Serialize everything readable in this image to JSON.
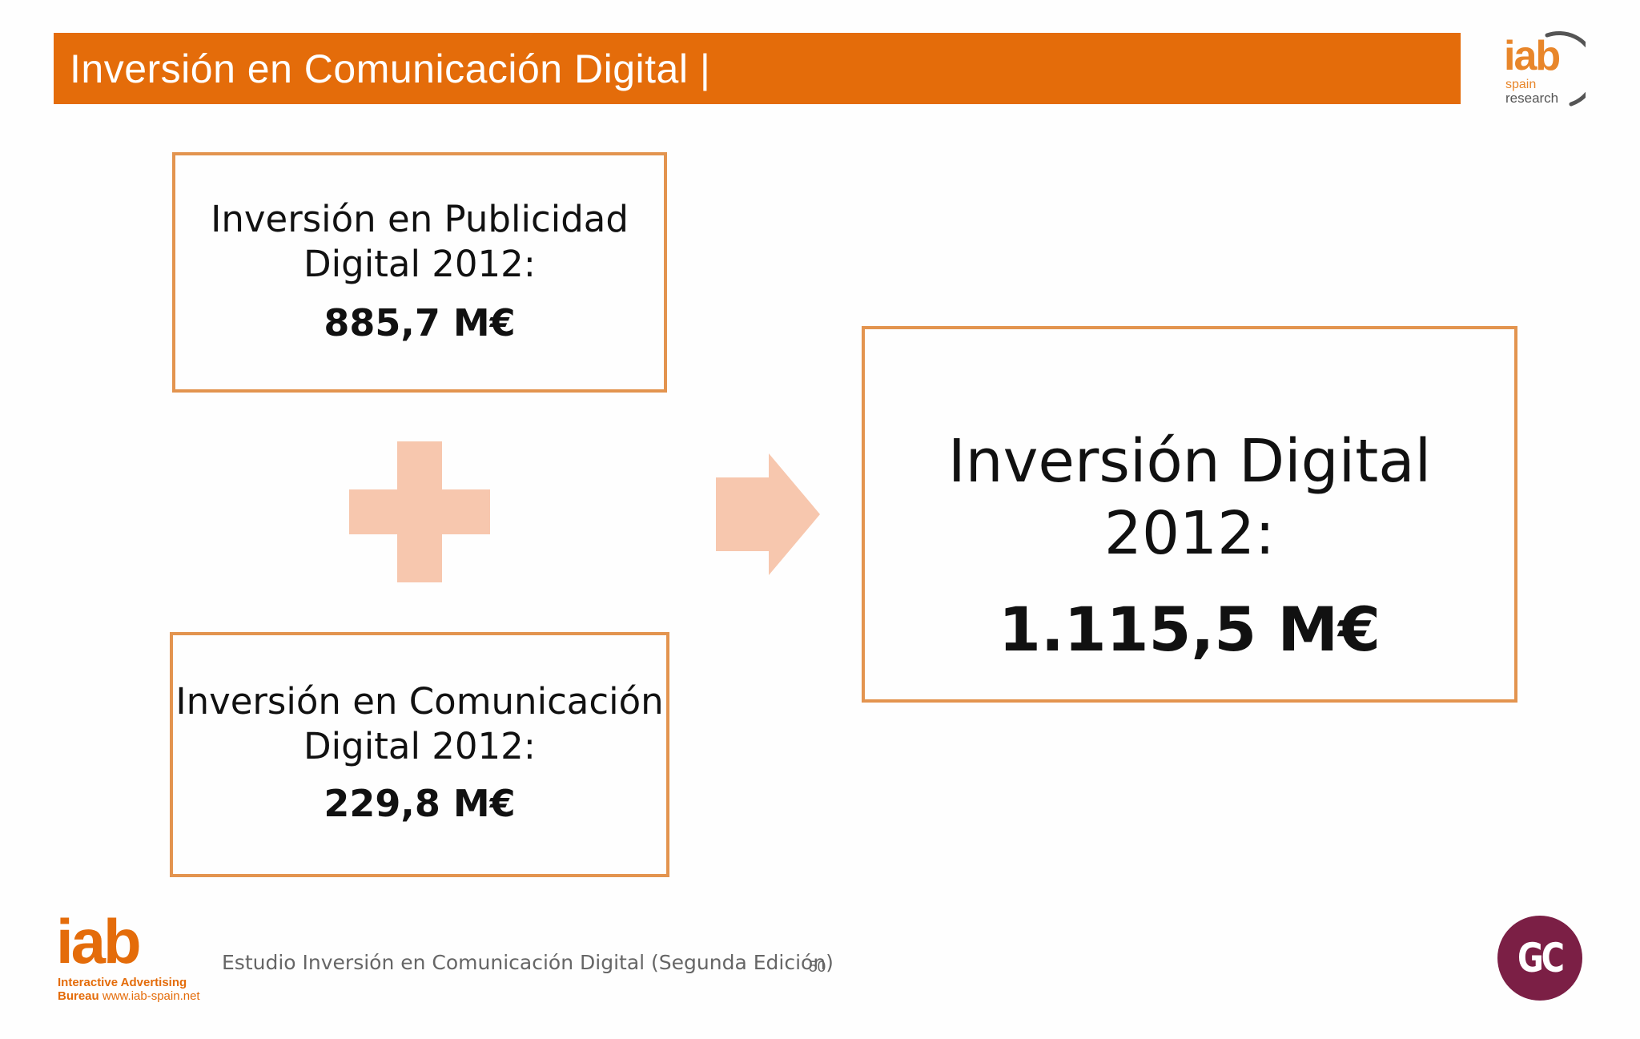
{
  "header": {
    "title": "Inversión en Comunicación Digital |"
  },
  "logo_top": {
    "brand": "iab",
    "line1": "spain",
    "line2": "research"
  },
  "boxes": {
    "publicidad": {
      "label_line1": "Inversión en Publicidad",
      "label_line2": "Digital 2012:",
      "value": "885,7 M€"
    },
    "comunicacion": {
      "label_line1": "Inversión en Comunicación",
      "label_line2": "Digital 2012:",
      "value": "229,8 M€"
    },
    "total": {
      "label": "Inversión Digital 2012:",
      "value": "1.115,5 M€"
    }
  },
  "operators": {
    "plus_icon": "plus-icon",
    "arrow_icon": "arrow-right-icon"
  },
  "footer": {
    "logo_brand": "iab",
    "logo_line1": "Interactive Advertising",
    "logo_line2_bold": "Bureau",
    "logo_url": "www.iab-spain.net",
    "study": "Estudio Inversión en Comunicación Digital (Segunda Edición)",
    "page_number": "50",
    "badge": "GC"
  },
  "colors": {
    "accent": "#e46c0a",
    "box_border": "#e3944f",
    "operator_fill": "#f7c7ae",
    "badge": "#7b1f45"
  }
}
